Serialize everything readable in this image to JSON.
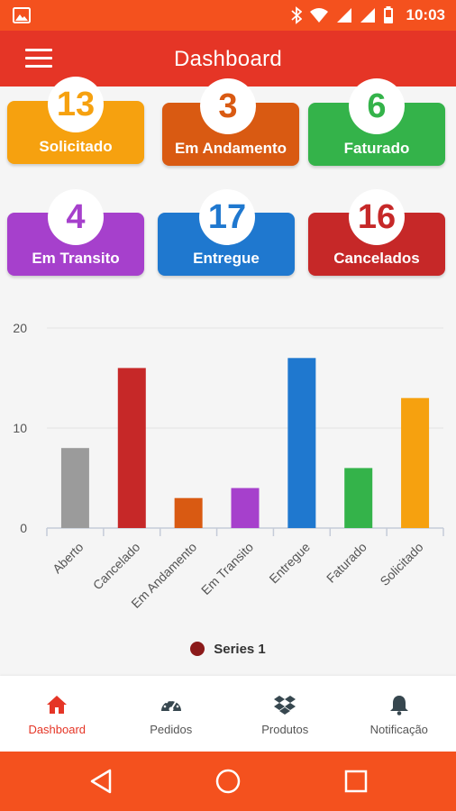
{
  "status_bar": {
    "time": "10:03",
    "icons": [
      "image-icon",
      "bluetooth-icon",
      "wifi-icon",
      "signal-icon",
      "signal-icon",
      "battery-icon"
    ]
  },
  "app_bar": {
    "title": "Dashboard"
  },
  "cards": [
    {
      "count": "13",
      "label": "Solicitado",
      "color": "#f6a10f"
    },
    {
      "count": "3",
      "label": "Em Andamento",
      "color": "#d95a12"
    },
    {
      "count": "6",
      "label": "Faturado",
      "color": "#34b34a"
    },
    {
      "count": "4",
      "label": "Em Transito",
      "color": "#a640cc"
    },
    {
      "count": "17",
      "label": "Entregue",
      "color": "#1f78cf"
    },
    {
      "count": "16",
      "label": "Cancelados",
      "color": "#c62828"
    }
  ],
  "chart_data": {
    "type": "bar",
    "categories": [
      "Aberto",
      "Cancelado",
      "Em Andamento",
      "Em Transito",
      "Entregue",
      "Faturado",
      "Solicitado"
    ],
    "series": [
      {
        "name": "Series 1",
        "values": [
          8,
          16,
          3,
          4,
          17,
          6,
          13
        ]
      }
    ],
    "bar_colors": [
      "#9b9b9b",
      "#c62828",
      "#d95a12",
      "#a640cc",
      "#1f78cf",
      "#34b34a",
      "#f6a10f"
    ],
    "y_ticks": [
      "0",
      "10",
      "20"
    ],
    "ylim": [
      0,
      20
    ],
    "grid": true,
    "legend": "bottom-center"
  },
  "bottom_nav": [
    {
      "label": "Dashboard",
      "icon": "home-icon",
      "active": true
    },
    {
      "label": "Pedidos",
      "icon": "speedometer-icon",
      "active": false
    },
    {
      "label": "Produtos",
      "icon": "dropbox-icon",
      "active": false
    },
    {
      "label": "Notificação",
      "icon": "bell-icon",
      "active": false
    }
  ]
}
